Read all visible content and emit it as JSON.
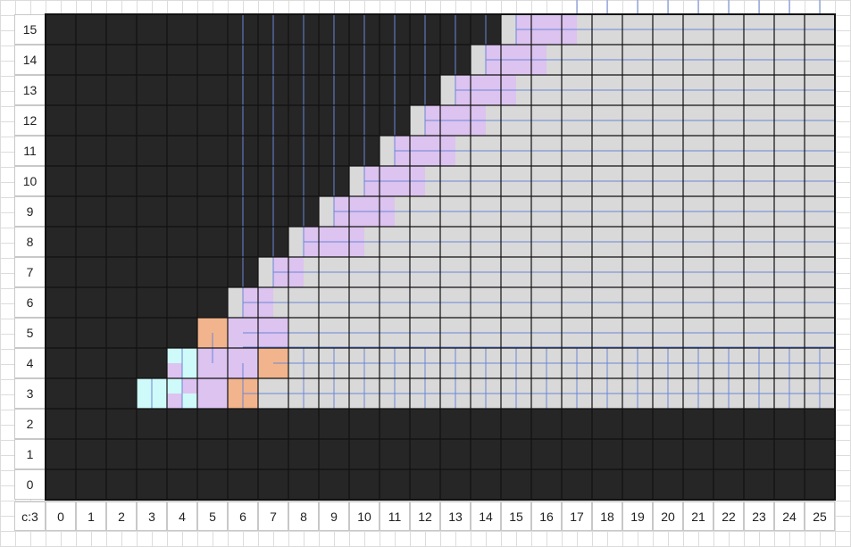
{
  "corner_label": "c:3",
  "col_labels": [
    "0",
    "1",
    "2",
    "3",
    "4",
    "5",
    "6",
    "7",
    "8",
    "9",
    "10",
    "11",
    "12",
    "13",
    "14",
    "15",
    "16",
    "17",
    "18",
    "19",
    "20",
    "21",
    "22",
    "23",
    "24",
    "25"
  ],
  "row_labels": [
    "15",
    "14",
    "13",
    "12",
    "11",
    "10",
    "9",
    "8",
    "7",
    "6",
    "5",
    "4",
    "3",
    "2",
    "1",
    "0"
  ],
  "colors": {
    "wall": "#262626",
    "floor": "#d9d9d9",
    "purple": "#dcc3f0",
    "cyan": "#cffafa",
    "orange": "#f2b48c",
    "cell_border": "#111111",
    "blue_line": "#6b86d6",
    "page_grid": "#dcdcdc"
  }
}
